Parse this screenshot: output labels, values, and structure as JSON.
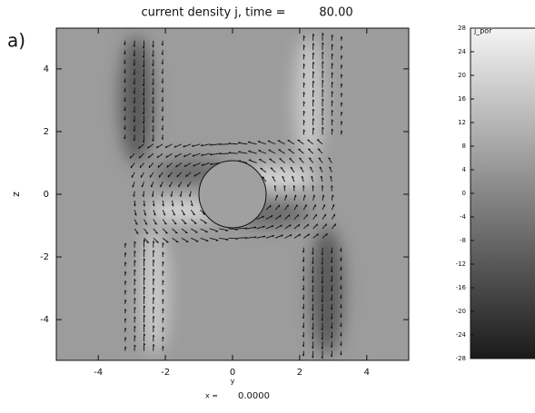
{
  "panel_label": "a)",
  "chart_data": {
    "type": "heatmap",
    "title": "current density j, time =",
    "time": "80.00",
    "x_label": "y",
    "y_label": "z",
    "slice": {
      "label": "x =",
      "value": "0.0000"
    },
    "xlim": [
      -5.25,
      5.25
    ],
    "ylim": [
      -5.3,
      5.3
    ],
    "xticks": [
      -4,
      -2,
      0,
      2,
      4
    ],
    "yticks": [
      -4,
      -2,
      0,
      2,
      4
    ],
    "colormap": "gray",
    "colorbar": {
      "title": "j_por",
      "lim": [
        -28,
        28
      ],
      "ticks": [
        28,
        24,
        20,
        16,
        12,
        8,
        4,
        0,
        -4,
        -8,
        -12,
        -16,
        -20,
        -24,
        -28
      ]
    }
  }
}
